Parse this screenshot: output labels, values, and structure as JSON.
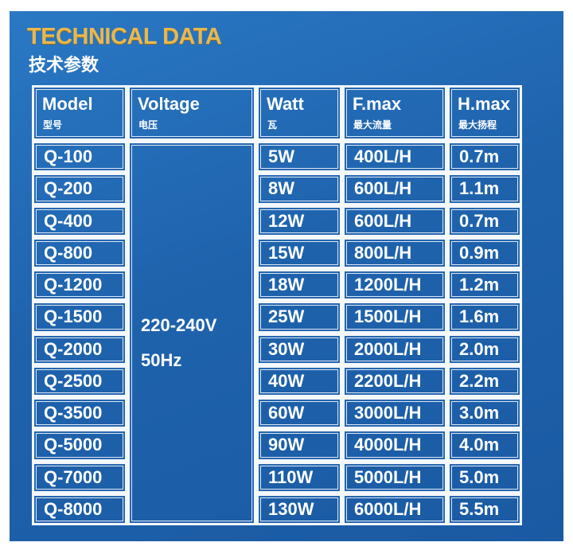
{
  "header": {
    "title": "TECHNICAL DATA",
    "subtitle": "技术参数"
  },
  "table": {
    "columns": [
      {
        "en": "Model",
        "zh": "型号"
      },
      {
        "en": "Voltage",
        "zh": "电压"
      },
      {
        "en": "Watt",
        "zh": "瓦"
      },
      {
        "en": "F.max",
        "zh": "最大流量"
      },
      {
        "en": "H.max",
        "zh": "最大扬程"
      }
    ],
    "voltage": [
      "220-240V",
      "50Hz"
    ],
    "rows": [
      [
        "Q-100",
        "5W",
        "400L/H",
        "0.7m"
      ],
      [
        "Q-200",
        "8W",
        "600L/H",
        "1.1m"
      ],
      [
        "Q-400",
        "12W",
        "600L/H",
        "0.7m"
      ],
      [
        "Q-800",
        "15W",
        "800L/H",
        "0.9m"
      ],
      [
        "Q-1200",
        "18W",
        "1200L/H",
        "1.2m"
      ],
      [
        "Q-1500",
        "25W",
        "1500L/H",
        "1.6m"
      ],
      [
        "Q-2000",
        "30W",
        "2000L/H",
        "2.0m"
      ],
      [
        "Q-2500",
        "40W",
        "2200L/H",
        "2.2m"
      ],
      [
        "Q-3500",
        "60W",
        "3000L/H",
        "3.0m"
      ],
      [
        "Q-5000",
        "90W",
        "4000L/H",
        "4.0m"
      ],
      [
        "Q-7000",
        "110W",
        "5000L/H",
        "5.0m"
      ],
      [
        "Q-8000",
        "130W",
        "6000L/H",
        "5.5m"
      ]
    ]
  }
}
